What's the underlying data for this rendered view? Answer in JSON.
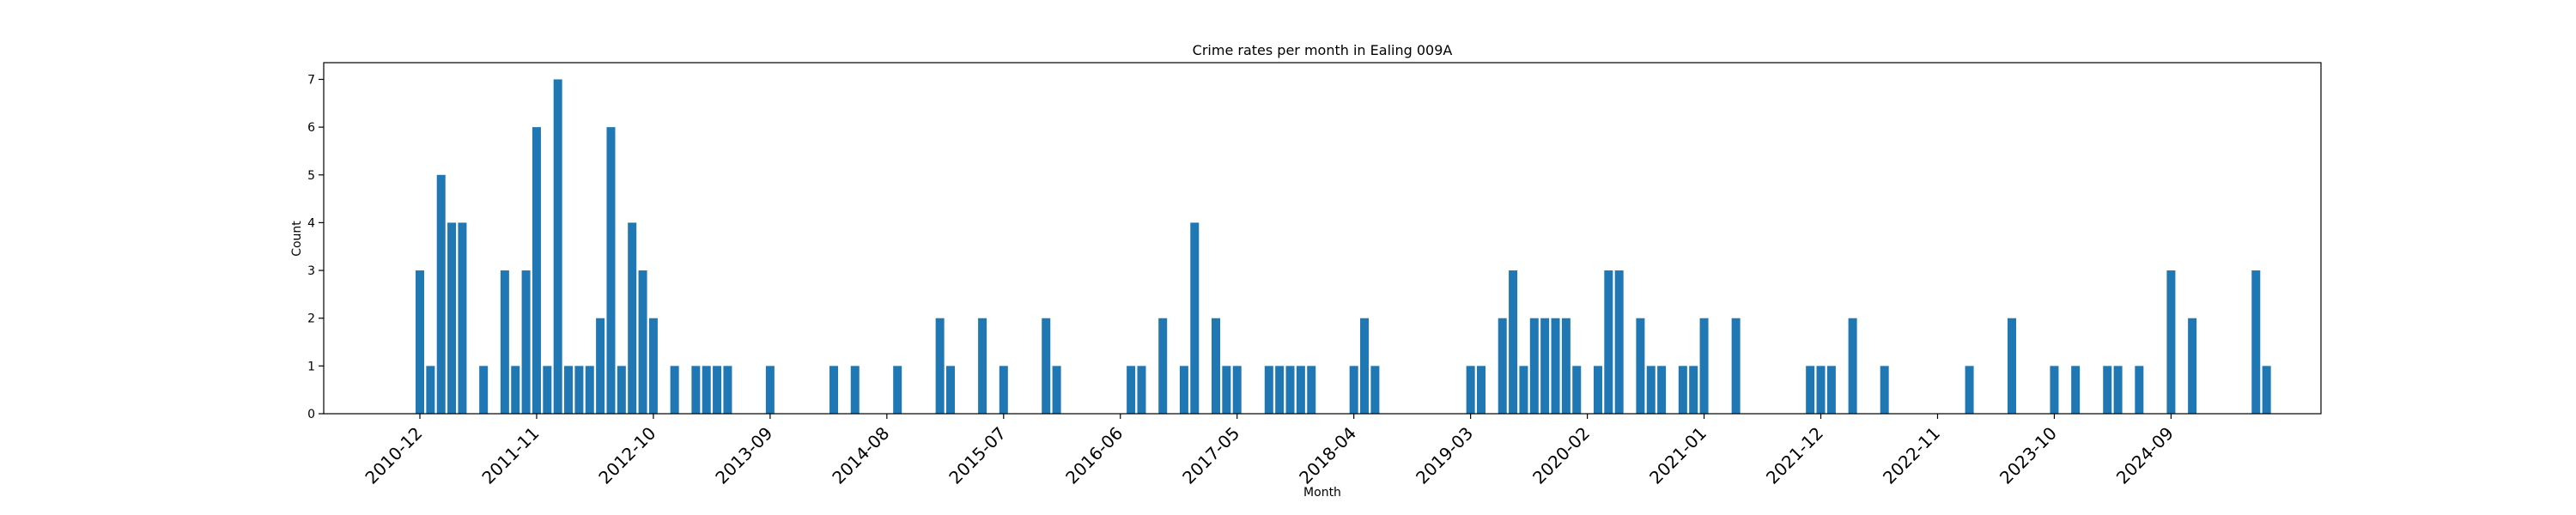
{
  "chart_data": {
    "type": "bar",
    "title": "Crime rates per month in Ealing 009A",
    "xlabel": "Month",
    "ylabel": "Count",
    "ylim": [
      0,
      7.35
    ],
    "yticks": [
      0,
      1,
      2,
      3,
      4,
      5,
      6,
      7
    ],
    "grid": false,
    "bar_color": "#1f77b4",
    "x_tick_labels": [
      "2010-12",
      "2011-11",
      "2012-10",
      "2013-09",
      "2014-08",
      "2015-07",
      "2016-06",
      "2017-05",
      "2018-04",
      "2019-03",
      "2020-02",
      "2021-01",
      "2021-12",
      "2022-11",
      "2023-10",
      "2024-09"
    ],
    "points": [
      {
        "x": "2010-12",
        "y": 3
      },
      {
        "x": "2011-01",
        "y": 1
      },
      {
        "x": "2011-02",
        "y": 5
      },
      {
        "x": "2011-03",
        "y": 4
      },
      {
        "x": "2011-04",
        "y": 4
      },
      {
        "x": "2011-06",
        "y": 1
      },
      {
        "x": "2011-08",
        "y": 3
      },
      {
        "x": "2011-09",
        "y": 1
      },
      {
        "x": "2011-10",
        "y": 3
      },
      {
        "x": "2011-11",
        "y": 6
      },
      {
        "x": "2011-12",
        "y": 1
      },
      {
        "x": "2012-01",
        "y": 7
      },
      {
        "x": "2012-02",
        "y": 1
      },
      {
        "x": "2012-03",
        "y": 1
      },
      {
        "x": "2012-04",
        "y": 1
      },
      {
        "x": "2012-05",
        "y": 2
      },
      {
        "x": "2012-06",
        "y": 6
      },
      {
        "x": "2012-07",
        "y": 1
      },
      {
        "x": "2012-08",
        "y": 4
      },
      {
        "x": "2012-09",
        "y": 3
      },
      {
        "x": "2012-10",
        "y": 2
      },
      {
        "x": "2012-12",
        "y": 1
      },
      {
        "x": "2013-02",
        "y": 1
      },
      {
        "x": "2013-03",
        "y": 1
      },
      {
        "x": "2013-04",
        "y": 1
      },
      {
        "x": "2013-05",
        "y": 1
      },
      {
        "x": "2013-09",
        "y": 1
      },
      {
        "x": "2014-03",
        "y": 1
      },
      {
        "x": "2014-05",
        "y": 1
      },
      {
        "x": "2014-09",
        "y": 1
      },
      {
        "x": "2015-01",
        "y": 2
      },
      {
        "x": "2015-02",
        "y": 1
      },
      {
        "x": "2015-05",
        "y": 2
      },
      {
        "x": "2015-07",
        "y": 1
      },
      {
        "x": "2015-11",
        "y": 2
      },
      {
        "x": "2015-12",
        "y": 1
      },
      {
        "x": "2016-07",
        "y": 1
      },
      {
        "x": "2016-08",
        "y": 1
      },
      {
        "x": "2016-10",
        "y": 2
      },
      {
        "x": "2016-12",
        "y": 1
      },
      {
        "x": "2017-01",
        "y": 4
      },
      {
        "x": "2017-03",
        "y": 2
      },
      {
        "x": "2017-04",
        "y": 1
      },
      {
        "x": "2017-05",
        "y": 1
      },
      {
        "x": "2017-08",
        "y": 1
      },
      {
        "x": "2017-09",
        "y": 1
      },
      {
        "x": "2017-10",
        "y": 1
      },
      {
        "x": "2017-11",
        "y": 1
      },
      {
        "x": "2017-12",
        "y": 1
      },
      {
        "x": "2018-04",
        "y": 1
      },
      {
        "x": "2018-05",
        "y": 2
      },
      {
        "x": "2018-06",
        "y": 1
      },
      {
        "x": "2019-03",
        "y": 1
      },
      {
        "x": "2019-04",
        "y": 1
      },
      {
        "x": "2019-06",
        "y": 2
      },
      {
        "x": "2019-07",
        "y": 3
      },
      {
        "x": "2019-08",
        "y": 1
      },
      {
        "x": "2019-09",
        "y": 2
      },
      {
        "x": "2019-10",
        "y": 2
      },
      {
        "x": "2019-11",
        "y": 2
      },
      {
        "x": "2019-12",
        "y": 2
      },
      {
        "x": "2020-01",
        "y": 1
      },
      {
        "x": "2020-03",
        "y": 1
      },
      {
        "x": "2020-04",
        "y": 3
      },
      {
        "x": "2020-05",
        "y": 3
      },
      {
        "x": "2020-07",
        "y": 2
      },
      {
        "x": "2020-08",
        "y": 1
      },
      {
        "x": "2020-09",
        "y": 1
      },
      {
        "x": "2020-11",
        "y": 1
      },
      {
        "x": "2020-12",
        "y": 1
      },
      {
        "x": "2021-01",
        "y": 2
      },
      {
        "x": "2021-04",
        "y": 2
      },
      {
        "x": "2021-11",
        "y": 1
      },
      {
        "x": "2021-12",
        "y": 1
      },
      {
        "x": "2022-01",
        "y": 1
      },
      {
        "x": "2022-03",
        "y": 2
      },
      {
        "x": "2022-06",
        "y": 1
      },
      {
        "x": "2023-02",
        "y": 1
      },
      {
        "x": "2023-06",
        "y": 2
      },
      {
        "x": "2023-10",
        "y": 1
      },
      {
        "x": "2023-12",
        "y": 1
      },
      {
        "x": "2024-03",
        "y": 1
      },
      {
        "x": "2024-04",
        "y": 1
      },
      {
        "x": "2024-06",
        "y": 1
      },
      {
        "x": "2024-09",
        "y": 3
      },
      {
        "x": "2024-11",
        "y": 2
      },
      {
        "x": "2025-05",
        "y": 3
      },
      {
        "x": "2025-06",
        "y": 1
      }
    ]
  }
}
